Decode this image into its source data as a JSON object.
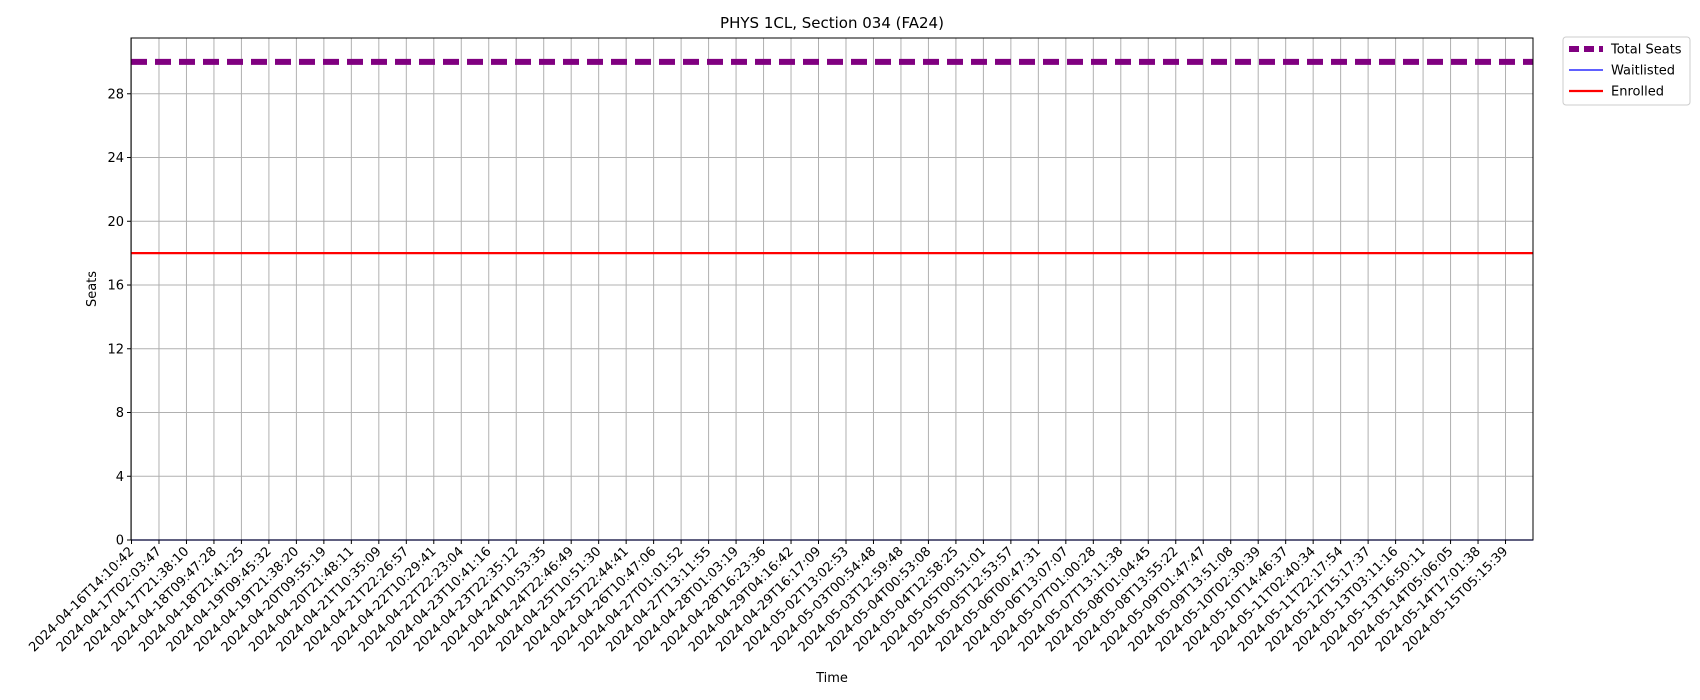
{
  "chart_data": {
    "type": "line",
    "title": "PHYS 1CL, Section 034 (FA24)",
    "xlabel": "Time",
    "ylabel": "Seats",
    "ylim": [
      0,
      31.5
    ],
    "yticks": [
      0,
      4,
      8,
      12,
      16,
      20,
      24,
      28
    ],
    "grid": true,
    "legend_position": "outside-top-right",
    "x": [
      "2024-04-16T14:10:42",
      "2024-04-17T02:03:47",
      "2024-04-17T21:38:10",
      "2024-04-18T09:47:28",
      "2024-04-18T21:41:25",
      "2024-04-19T09:45:32",
      "2024-04-19T21:38:20",
      "2024-04-20T09:55:19",
      "2024-04-20T21:48:11",
      "2024-04-21T10:35:09",
      "2024-04-21T22:26:57",
      "2024-04-22T10:29:41",
      "2024-04-22T22:23:04",
      "2024-04-23T10:41:16",
      "2024-04-23T22:35:12",
      "2024-04-24T10:53:35",
      "2024-04-24T22:46:49",
      "2024-04-25T10:51:30",
      "2024-04-25T22:44:41",
      "2024-04-26T10:47:06",
      "2024-04-27T01:01:52",
      "2024-04-27T13:11:55",
      "2024-04-28T01:03:19",
      "2024-04-28T16:23:36",
      "2024-04-29T04:16:42",
      "2024-04-29T16:17:09",
      "2024-05-02T13:02:53",
      "2024-05-03T00:54:48",
      "2024-05-03T12:59:48",
      "2024-05-04T00:53:08",
      "2024-05-04T12:58:25",
      "2024-05-05T00:51:01",
      "2024-05-05T12:53:57",
      "2024-05-06T00:47:31",
      "2024-05-06T13:07:07",
      "2024-05-07T01:00:28",
      "2024-05-07T13:11:38",
      "2024-05-08T01:04:45",
      "2024-05-08T13:55:22",
      "2024-05-09T01:47:47",
      "2024-05-09T13:51:08",
      "2024-05-10T02:30:39",
      "2024-05-10T14:46:37",
      "2024-05-11T02:40:34",
      "2024-05-11T22:17:54",
      "2024-05-12T15:17:37",
      "2024-05-13T03:11:16",
      "2024-05-13T16:50:11",
      "2024-05-14T05:06:05",
      "2024-05-14T17:01:38",
      "2024-05-15T05:15:39"
    ],
    "series": [
      {
        "name": "Total Seats",
        "value": 30,
        "color": "#800080",
        "style": "dashed-thick"
      },
      {
        "name": "Waitlisted",
        "value": 0,
        "color": "#0000ff",
        "style": "solid-thin"
      },
      {
        "name": "Enrolled",
        "value": 18,
        "color": "#ff0000",
        "style": "solid"
      }
    ]
  }
}
